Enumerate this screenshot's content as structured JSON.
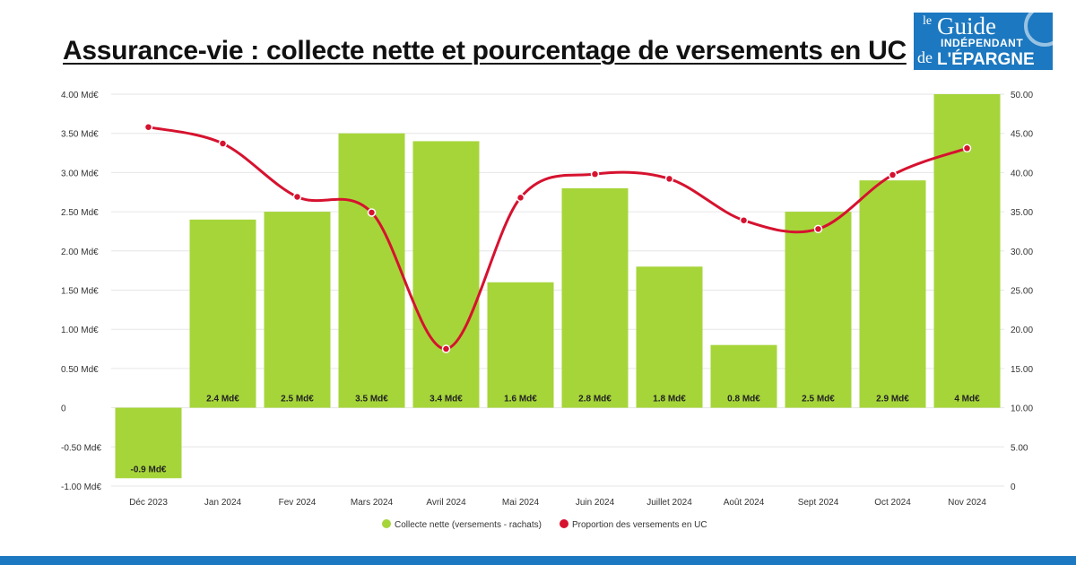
{
  "title": "Assurance-vie : collecte nette et pourcentage de versements en UC",
  "logo": {
    "le": "le",
    "guide": "Guide",
    "independant": "INDÉPENDANT",
    "de": "de",
    "epargne": "L'ÉPARGNE",
    "bg_color": "#1c78c0"
  },
  "chart_data": {
    "type": "bar",
    "categories": [
      "Déc 2023",
      "Jan 2024",
      "Fev 2024",
      "Mars 2024",
      "Avril 2024",
      "Mai 2024",
      "Juin 2024",
      "Juillet 2024",
      "Août 2024",
      "Sept 2024",
      "Oct 2024",
      "Nov 2024"
    ],
    "series": [
      {
        "name": "Collecte nette (versements - rachats)",
        "type": "bar",
        "axis": "left",
        "color": "#a6d53a",
        "values": [
          -0.9,
          2.4,
          2.5,
          3.5,
          3.4,
          1.6,
          2.8,
          1.8,
          0.8,
          2.5,
          2.9,
          4.0
        ],
        "labels": [
          "-0.9 Md€",
          "2.4 Md€",
          "2.5 Md€",
          "3.5 Md€",
          "3.4 Md€",
          "1.6 Md€",
          "2.8 Md€",
          "1.8 Md€",
          "0.8 Md€",
          "2.5 Md€",
          "2.9 Md€",
          "4 Md€"
        ]
      },
      {
        "name": "Proportion des versements en UC",
        "type": "line",
        "smooth": true,
        "axis": "right",
        "color": "#d6122f",
        "values": [
          45.8,
          43.7,
          36.9,
          34.9,
          17.5,
          36.8,
          39.8,
          39.2,
          33.9,
          32.8,
          39.7,
          43.1
        ]
      }
    ],
    "y_left": {
      "range": [
        -1.0,
        4.0
      ],
      "ticks": [
        4.0,
        3.5,
        3.0,
        2.5,
        2.0,
        1.5,
        1.0,
        0.5,
        0,
        -0.5,
        -1.0
      ],
      "tick_labels": [
        "4.00 Md€",
        "3.50 Md€",
        "3.00 Md€",
        "2.50 Md€",
        "2.00 Md€",
        "1.50 Md€",
        "1.00 Md€",
        "0.50 Md€",
        "0",
        "-0.50 Md€",
        "-1.00 Md€"
      ]
    },
    "y_right": {
      "range": [
        0,
        50
      ],
      "ticks": [
        50,
        45,
        40,
        35,
        30,
        25,
        20,
        15,
        10,
        5,
        0
      ],
      "tick_labels": [
        "50.00",
        "45.00",
        "40.00",
        "35.00",
        "30.00",
        "25.00",
        "20.00",
        "15.00",
        "10.00",
        "5.00",
        "0"
      ]
    },
    "grid": true,
    "legend_position": "bottom",
    "colors": {
      "bar": "#a6d53a",
      "line": "#d6122f",
      "grid": "#e6e6e6"
    }
  }
}
